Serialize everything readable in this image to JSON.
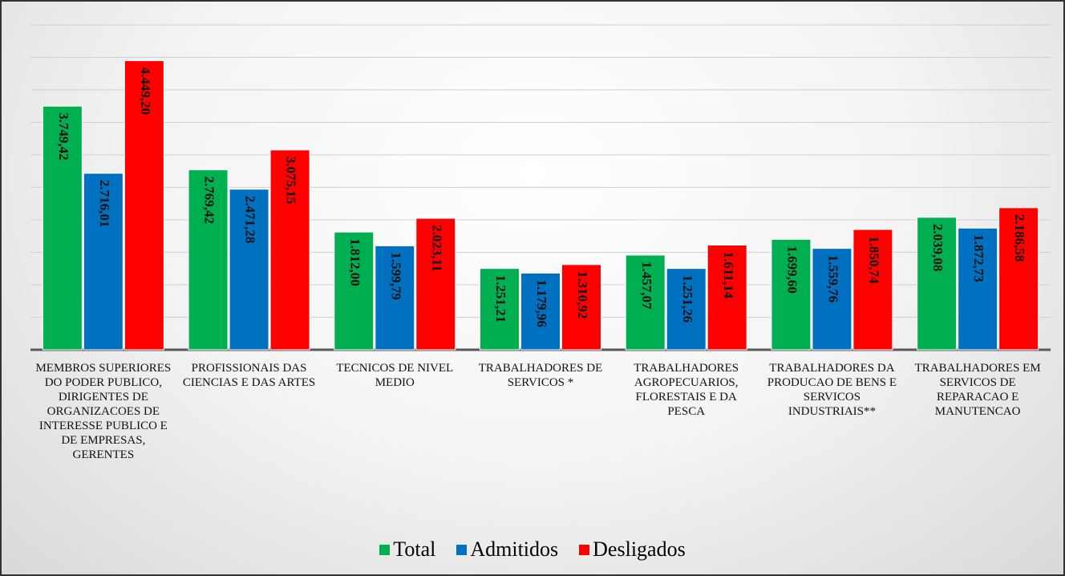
{
  "chart_data": {
    "type": "bar",
    "categories": [
      "MEMBROS SUPERIORES DO PODER PUBLICO, DIRIGENTES DE ORGANIZACOES DE INTERESSE PUBLICO E DE EMPRESAS, GERENTES",
      "PROFISSIONAIS DAS CIENCIAS E DAS ARTES",
      "TECNICOS DE NIVEL MEDIO",
      "TRABALHADORES DE SERVICOS *",
      "TRABALHADORES AGROPECUARIOS, FLORESTAIS E DA PESCA",
      "TRABALHADORES DA PRODUCAO DE BENS E SERVICOS INDUSTRIAIS**",
      "TRABALHADORES EM SERVICOS DE REPARACAO E MANUTENCAO"
    ],
    "series": [
      {
        "name": "Total",
        "color": "#00b050",
        "values": [
          3749.42,
          2769.42,
          1812.0,
          1251.21,
          1457.07,
          1699.6,
          2039.08
        ],
        "value_labels": [
          "3.749,42",
          "2.769,42",
          "1.812,00",
          "1.251,21",
          "1.457,07",
          "1.699,60",
          "2.039,08"
        ]
      },
      {
        "name": "Admitidos",
        "color": "#0070c0",
        "values": [
          2716.01,
          2471.28,
          1599.79,
          1179.96,
          1251.26,
          1559.76,
          1872.73
        ],
        "value_labels": [
          "2.716,01",
          "2.471,28",
          "1.599,79",
          "1.179,96",
          "1.251,26",
          "1.559,76",
          "1.872,73"
        ]
      },
      {
        "name": "Desligados",
        "color": "#ff0000",
        "values": [
          4449.2,
          3075.15,
          2023.11,
          1310.92,
          1611.14,
          1850.74,
          2186.58
        ],
        "value_labels": [
          "4.449,20",
          "3.075,15",
          "2.023,11",
          "1.310,92",
          "1.611,14",
          "1.850,74",
          "2.186,58"
        ]
      }
    ],
    "ylim": [
      0,
      5000
    ],
    "yticks": [
      0,
      500,
      1000,
      1500,
      2000,
      2500,
      3000,
      3500,
      4000,
      4500,
      5000
    ],
    "grid": true,
    "legend": "bottom"
  }
}
